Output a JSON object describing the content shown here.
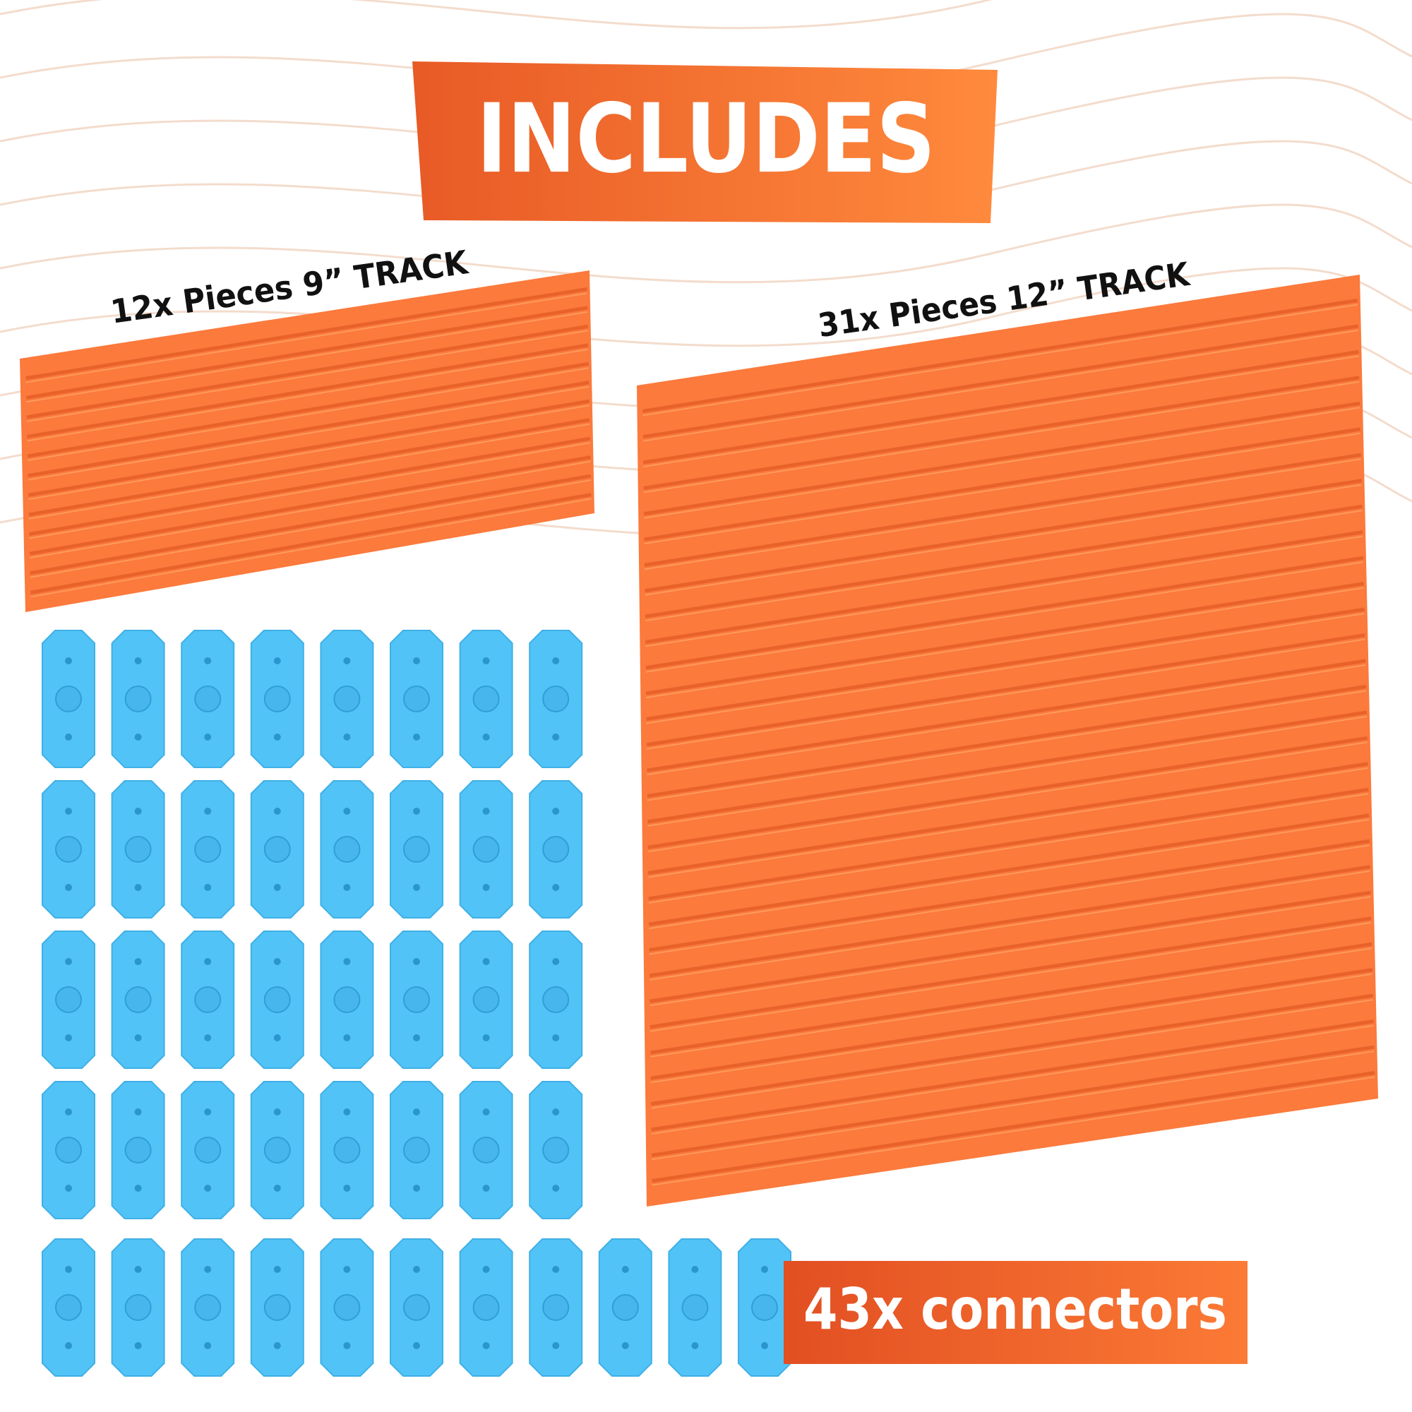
{
  "banner": {
    "title": "INCLUDES"
  },
  "items": [
    {
      "label": "12x Pieces 9” TRACK"
    },
    {
      "label": "31x Pieces 12” TRACK"
    },
    {
      "label": "43x connectors"
    }
  ]
}
